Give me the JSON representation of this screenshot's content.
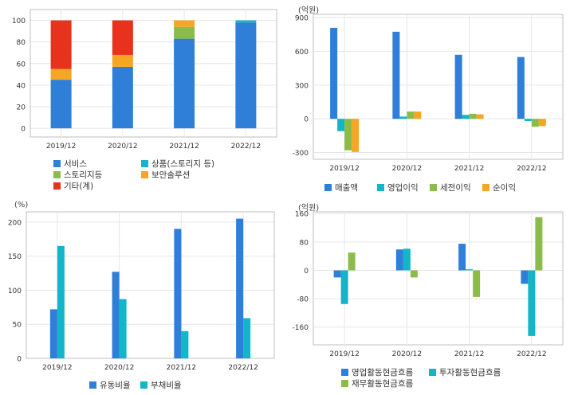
{
  "colors": {
    "blue": "#2f7ed8",
    "teal": "#13b5c8",
    "green": "#8bbc4a",
    "orange": "#f5a623",
    "red": "#e8321e",
    "grid": "#e6e6e6",
    "frame": "#bfbfbf"
  },
  "chart_data": [
    {
      "id": "revenue-mix",
      "type": "bar",
      "stacked": true,
      "unit_label": "",
      "categories": [
        "2019/12",
        "2020/12",
        "2021/12",
        "2022/12"
      ],
      "yticks": [
        0,
        20,
        40,
        60,
        80,
        100
      ],
      "ylim": [
        -8,
        110
      ],
      "series": [
        {
          "name": "서비스",
          "color_key": "blue",
          "values": [
            45,
            57,
            83,
            98
          ]
        },
        {
          "name": "상품(스토리지 등)",
          "color_key": "teal",
          "values": [
            0,
            0,
            0,
            2
          ]
        },
        {
          "name": "스토리지등",
          "color_key": "green",
          "values": [
            0,
            0,
            11,
            0
          ]
        },
        {
          "name": "보안솔루션",
          "color_key": "orange",
          "values": [
            10,
            11,
            6,
            0
          ]
        },
        {
          "name": "기타(계)",
          "color_key": "red",
          "values": [
            45,
            32,
            0,
            0
          ]
        }
      ]
    },
    {
      "id": "income",
      "type": "bar",
      "unit_label": "(억원)",
      "categories": [
        "2019/12",
        "2020/12",
        "2021/12",
        "2022/12"
      ],
      "yticks": [
        -300,
        0,
        300,
        600,
        900
      ],
      "ylim": [
        -360,
        930
      ],
      "series": [
        {
          "name": "매출액",
          "color_key": "blue",
          "values": [
            810,
            775,
            570,
            550
          ]
        },
        {
          "name": "영업이익",
          "color_key": "teal",
          "values": [
            -110,
            20,
            35,
            -20
          ]
        },
        {
          "name": "세전이익",
          "color_key": "green",
          "values": [
            -280,
            65,
            45,
            -70
          ]
        },
        {
          "name": "순이익",
          "color_key": "orange",
          "values": [
            -295,
            65,
            40,
            -65
          ]
        }
      ]
    },
    {
      "id": "ratios",
      "type": "bar",
      "unit_label": "(%)",
      "categories": [
        "2019/12",
        "2020/12",
        "2021/12",
        "2022/12"
      ],
      "yticks": [
        0,
        50,
        100,
        150,
        200
      ],
      "ylim": [
        0,
        215
      ],
      "series": [
        {
          "name": "유동비율",
          "color_key": "blue",
          "values": [
            72,
            127,
            190,
            205
          ]
        },
        {
          "name": "부채비율",
          "color_key": "teal",
          "values": [
            165,
            87,
            40,
            59
          ]
        }
      ]
    },
    {
      "id": "cashflow",
      "type": "bar",
      "unit_label": "(억원)",
      "categories": [
        "2019/12",
        "2020/12",
        "2021/12",
        "2022/12"
      ],
      "yticks": [
        -160,
        -80,
        0,
        80,
        160
      ],
      "ylim": [
        -210,
        165
      ],
      "series": [
        {
          "name": "영업활동현금흐름",
          "color_key": "blue",
          "values": [
            -20,
            59,
            75,
            -38
          ]
        },
        {
          "name": "투자활동현금흐름",
          "color_key": "teal",
          "values": [
            -95,
            61,
            3,
            -185
          ]
        },
        {
          "name": "재무활동현금흐름",
          "color_key": "green",
          "values": [
            50,
            -20,
            -75,
            150
          ]
        }
      ]
    }
  ]
}
